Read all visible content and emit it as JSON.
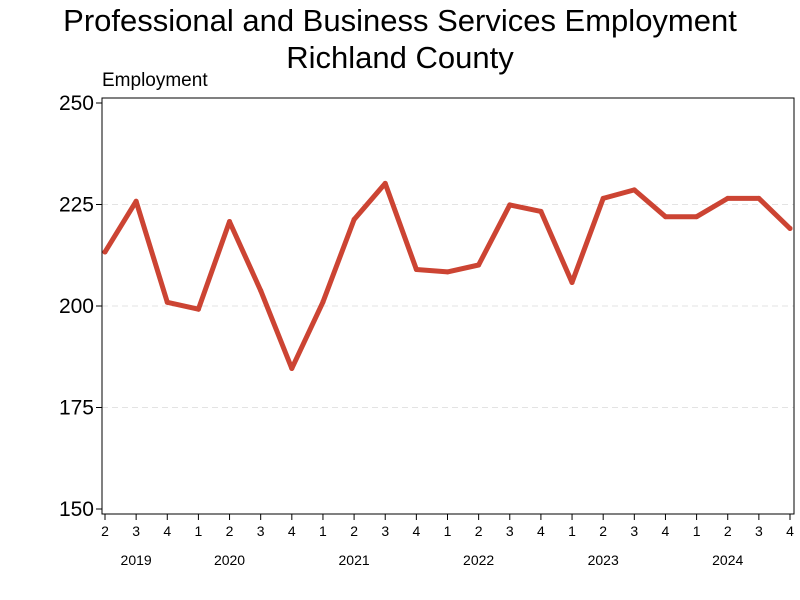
{
  "chart_data": {
    "type": "line",
    "title": "Professional and Business Services Employment",
    "subtitle": "Richland County",
    "ylabel": "Employment",
    "xlabel": "",
    "ylim": [
      150,
      250
    ],
    "yticks": [
      "150",
      "175",
      "200",
      "225",
      "250"
    ],
    "grid": true,
    "legend": "none",
    "color": "#cc4433",
    "x": [
      "2",
      "3",
      "4",
      "1",
      "2",
      "3",
      "4",
      "1",
      "2",
      "3",
      "4",
      "1",
      "2",
      "3",
      "4",
      "1",
      "2",
      "3",
      "4",
      "1",
      "2",
      "3",
      "4"
    ],
    "years": [
      {
        "label": "2019",
        "from": 0,
        "to": 2
      },
      {
        "label": "2020",
        "from": 2,
        "to": 6
      },
      {
        "label": "2021",
        "from": 6,
        "to": 10
      },
      {
        "label": "2022",
        "from": 10,
        "to": 14
      },
      {
        "label": "2023",
        "from": 14,
        "to": 18
      },
      {
        "label": "2024",
        "from": 18,
        "to": 22
      }
    ],
    "series": [
      {
        "values": [
          213.3,
          225.8,
          200.9,
          199.2,
          220.8,
          203.8,
          184.6,
          201.0,
          221.3,
          230.2,
          209.0,
          208.4,
          210.1,
          224.9,
          223.3,
          205.8,
          226.5,
          228.6,
          222.0,
          222.0,
          226.5,
          226.5,
          219.1
        ]
      }
    ]
  }
}
